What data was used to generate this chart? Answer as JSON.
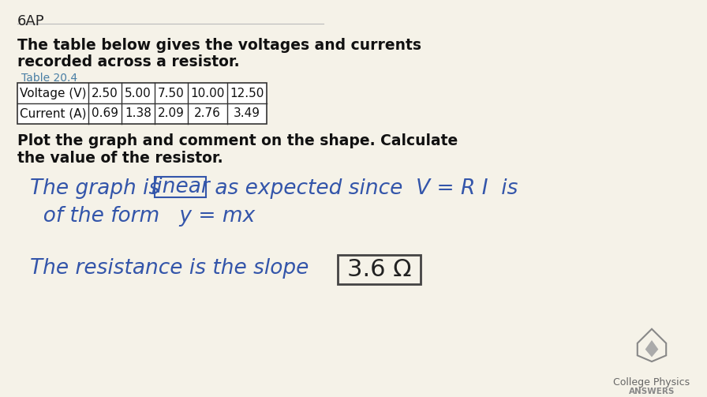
{
  "bg_color": "#f5f2e8",
  "problem_number": "6AP",
  "intro_text_line1": "The table below gives the voltages and currents",
  "intro_text_line2": "recorded across a resistor.",
  "table_label": "Table 20.4",
  "table_headers": [
    "Voltage (V)",
    "2.50",
    "5.00",
    "7.50",
    "10.00",
    "12.50"
  ],
  "table_row2": [
    "Current (A)",
    "0.69",
    "1.38",
    "2.09",
    "2.76",
    "3.49"
  ],
  "question_text_line1": "Plot the graph and comment on the shape. Calculate",
  "question_text_line2": "the value of the resistor.",
  "handwritten_line1_pre": "The graph is ",
  "handwritten_boxed": "linear",
  "handwritten_line1_post": " as expected since  V = R I  is",
  "handwritten_line2": "  of the form   y = mx",
  "handwritten_line3_pre": "The resistance is the slope ",
  "handwritten_boxed2": "3.6 Ω",
  "logo_text1": "College Physics",
  "logo_text2": "ANSWERS",
  "header_color": "#4a7fa5",
  "table_border_color": "#333333",
  "handwriting_color": "#3355aa",
  "handwriting_color2": "#222222",
  "separator_color": "#bbbbbb"
}
